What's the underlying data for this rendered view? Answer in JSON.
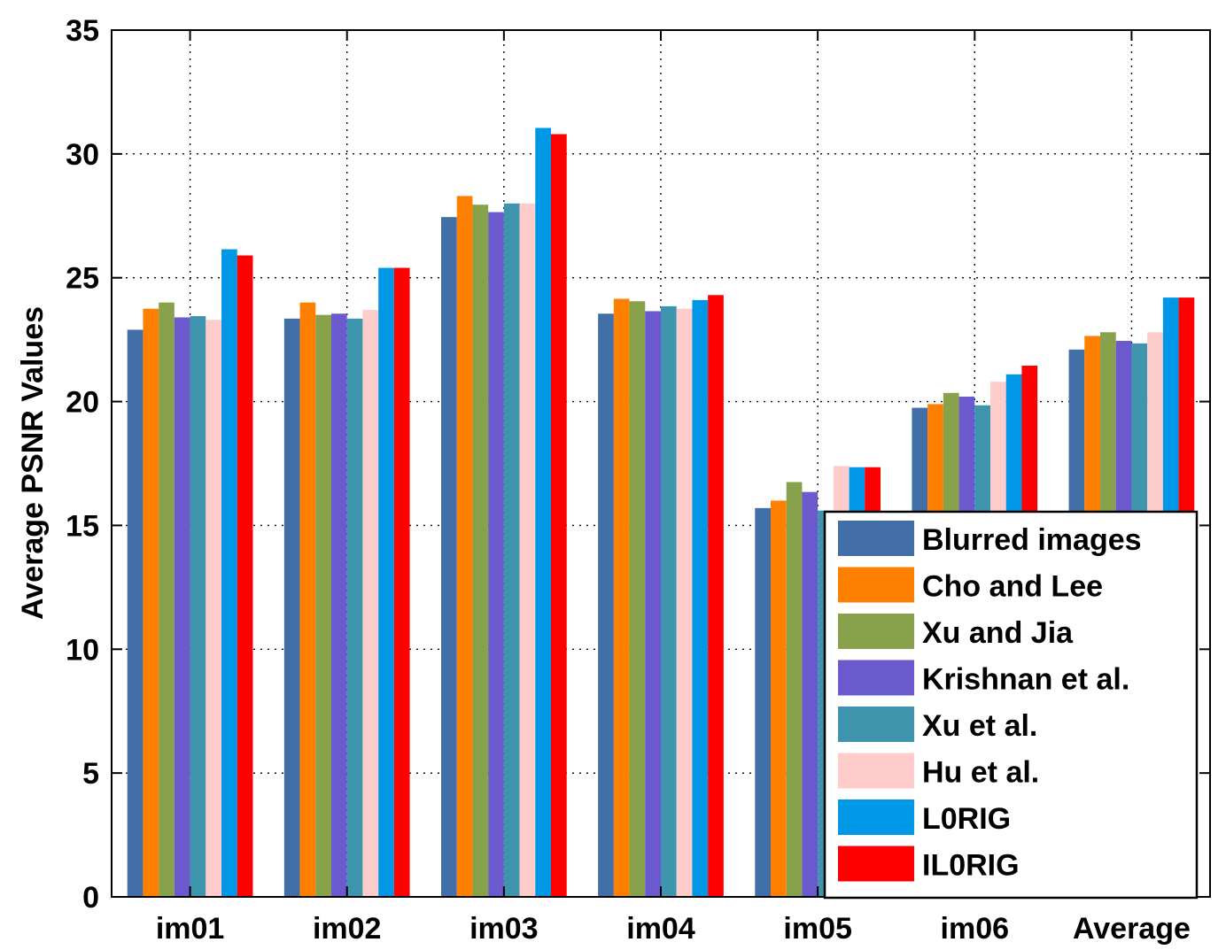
{
  "chart_data": {
    "type": "bar",
    "title": "",
    "xlabel": "",
    "ylabel": "Average PSNR Values",
    "ylim": [
      0,
      35
    ],
    "yticks": [
      "0",
      "5",
      "10",
      "15",
      "20",
      "25",
      "30",
      "35"
    ],
    "grid": true,
    "legend_position": "bottom-right",
    "categories": [
      "im01",
      "im02",
      "im03",
      "im04",
      "im05",
      "im06",
      "Average"
    ],
    "series": [
      {
        "name": "Blurred images",
        "color": "#436FA9",
        "values": [
          22.9,
          23.35,
          27.45,
          23.55,
          15.7,
          19.75,
          22.1
        ]
      },
      {
        "name": "Cho and Lee",
        "color": "#FF8000",
        "values": [
          23.75,
          24.0,
          28.3,
          24.15,
          16.0,
          19.9,
          22.65
        ]
      },
      {
        "name": "Xu and Jia",
        "color": "#88A24C",
        "values": [
          24.0,
          23.5,
          27.95,
          24.05,
          16.75,
          20.35,
          22.8
        ]
      },
      {
        "name": "Krishnan et al.",
        "color": "#6A5ACD",
        "values": [
          23.4,
          23.55,
          27.65,
          23.65,
          16.35,
          20.2,
          22.45
        ]
      },
      {
        "name": "Xu et al.",
        "color": "#3F95AE",
        "values": [
          23.45,
          23.35,
          28.0,
          23.85,
          15.6,
          19.85,
          22.35
        ]
      },
      {
        "name": "Hu et al.",
        "color": "#FFCCCC",
        "values": [
          23.3,
          23.7,
          28.0,
          23.75,
          17.4,
          20.8,
          22.8
        ]
      },
      {
        "name": "L0RIG",
        "color": "#0098E6",
        "values": [
          26.15,
          25.4,
          31.05,
          24.1,
          17.35,
          21.1,
          24.2
        ]
      },
      {
        "name": "IL0RIG",
        "color": "#FF0000",
        "values": [
          25.9,
          25.4,
          30.8,
          24.3,
          17.35,
          21.45,
          24.2
        ]
      }
    ]
  }
}
